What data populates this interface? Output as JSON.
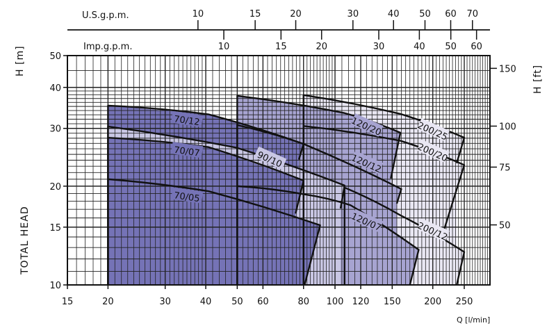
{
  "chart_data": {
    "type": "area",
    "title": "",
    "xlabel": "Q [l/min]",
    "ylabel": "H [m]",
    "ylabel_secondary": "TOTAL HEAD",
    "ylabel_right": "H [ft]",
    "x_scale": "log",
    "y_scale": "log",
    "xlim": [
      15,
      300
    ],
    "ylim": [
      10,
      50
    ],
    "grid": true,
    "x_ticks": [
      15,
      20,
      30,
      40,
      50,
      60,
      80,
      100,
      120,
      150,
      200,
      250
    ],
    "y_ticks": [
      10,
      15,
      20,
      30,
      40,
      50
    ],
    "right_axis": {
      "label": "H [ft]",
      "ticks": [
        50,
        75,
        100,
        150
      ]
    },
    "top_axes": [
      {
        "label": "U.S.g.p.m.",
        "ticks": [
          10,
          15,
          20,
          30,
          40,
          50,
          60,
          70
        ]
      },
      {
        "label": "Imp.g.p.m.",
        "ticks": [
          10,
          15,
          20,
          30,
          40,
          50,
          60
        ]
      }
    ],
    "family_colors": {
      "70": "#7573b6",
      "90": "#c9c7e4",
      "120": "#a7a4d1",
      "200": "#e9e7f3"
    },
    "series": [
      {
        "name": "200/25",
        "family": "200",
        "points": [
          [
            80,
            37.9
          ],
          [
            159,
            33.2
          ],
          [
            250,
            28.1
          ]
        ],
        "edge_end": [
          237,
          23.5
        ]
      },
      {
        "name": "200/20",
        "family": "200",
        "points": [
          [
            80,
            30.5
          ],
          [
            159,
            27.5
          ],
          [
            250,
            23.2
          ]
        ],
        "edge_end": [
          217,
          14.8
        ]
      },
      {
        "name": "200/12",
        "family": "200",
        "points": [
          [
            107,
            19.8
          ],
          [
            159,
            16.3
          ],
          [
            250,
            12.6
          ]
        ],
        "edge_end": [
          237,
          10
        ]
      },
      {
        "name": "120/20",
        "family": "120",
        "points": [
          [
            50,
            37.7
          ],
          [
            107,
            33.4
          ],
          [
            159,
            29.1
          ]
        ],
        "edge_end": [
          148.5,
          21.1
        ]
      },
      {
        "name": "120/12",
        "family": "120",
        "points": [
          [
            50,
            30.7
          ],
          [
            80,
            26.9
          ],
          [
            160,
            19.6
          ]
        ],
        "edge_end": [
          155,
          17.7
        ]
      },
      {
        "name": "120/07",
        "family": "120",
        "points": [
          [
            50,
            20.0
          ],
          [
            80,
            18.9
          ],
          [
            111.6,
            17.5
          ],
          [
            181,
            12.8
          ]
        ],
        "edge_end": [
          170,
          10
        ]
      },
      {
        "name": "70/12",
        "family": "70",
        "points": [
          [
            20,
            35.2
          ],
          [
            40.8,
            33.1
          ],
          [
            80,
            26.9
          ]
        ],
        "edge_end": [
          77.4,
          24.1
        ]
      },
      {
        "name": "90/10",
        "family": "90",
        "points": [
          [
            20,
            30.4
          ],
          [
            49.7,
            26.2
          ],
          [
            107,
            20.1
          ]
        ],
        "edge_end": [
          104,
          17.1
        ]
      },
      {
        "name": "70/07",
        "family": "70",
        "points": [
          [
            20,
            28.1
          ],
          [
            40.8,
            26.3
          ],
          [
            80,
            20.8
          ]
        ],
        "edge_end": [
          75.6,
          16.5
        ]
      },
      {
        "name": "70/05",
        "family": "70",
        "points": [
          [
            20,
            21.0
          ],
          [
            40.8,
            19.3
          ],
          [
            90,
            15.2
          ]
        ],
        "edge_end": [
          80.6,
          10
        ]
      }
    ],
    "series_labels_at": {
      "70/12": [
        35,
        31.8
      ],
      "70/07": [
        35,
        25.6
      ],
      "70/05": [
        35,
        18.6
      ],
      "90/10": [
        63,
        24.2
      ],
      "120/20": [
        125,
        30.5
      ],
      "120/12": [
        125,
        23.5
      ],
      "120/07": [
        125,
        15.6
      ],
      "200/25": [
        200,
        29.5
      ],
      "200/20": [
        200,
        25.4
      ],
      "200/12": [
        200,
        14.6
      ]
    }
  }
}
